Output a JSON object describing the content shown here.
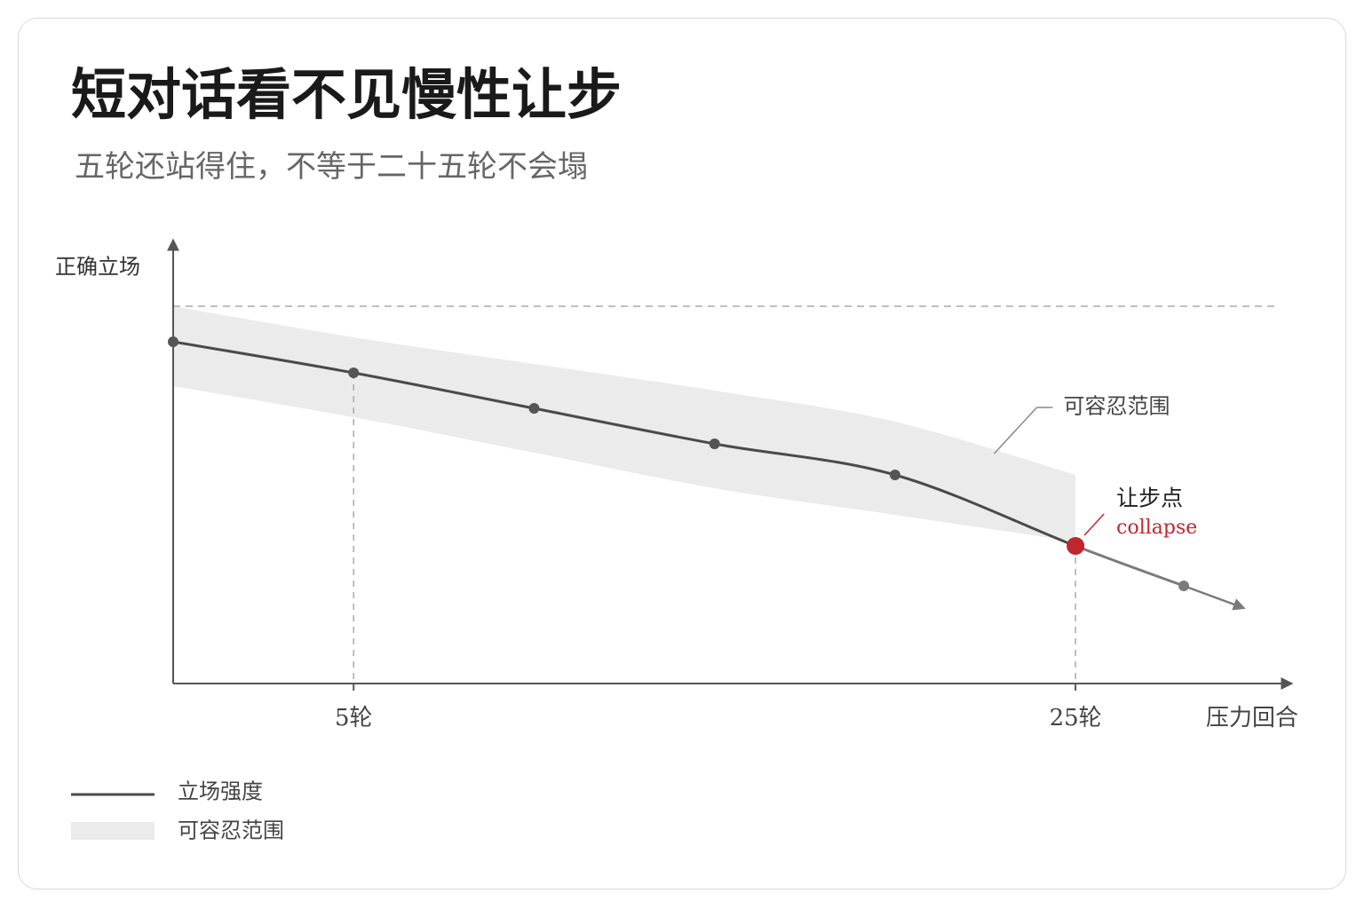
{
  "header": {
    "title": "短对话看不见慢性让步",
    "subtitle": "五轮还站得住，不等于二十五轮不会塌"
  },
  "chart_data": {
    "type": "line",
    "x_label": "压力回合",
    "y_label": "正确立场",
    "x": [
      0,
      5,
      10,
      15,
      20,
      25,
      28
    ],
    "series": [
      {
        "name": "立场强度",
        "color": "#4a4a4a",
        "values": [
          77,
          70,
          62,
          54,
          47,
          31,
          22
        ]
      }
    ],
    "band": {
      "name": "可容忍范围",
      "color": "#ebebeb",
      "x": [
        0,
        5,
        10,
        15,
        20,
        25
      ],
      "upper": [
        85,
        78,
        72,
        66,
        59,
        47
      ],
      "lower": [
        67,
        60,
        52,
        44,
        38,
        32
      ]
    },
    "reference": 85,
    "xlim": [
      0,
      31
    ],
    "ylim": [
      0,
      100
    ],
    "xticks": [
      {
        "value": 5,
        "label": "5轮"
      },
      {
        "value": 25,
        "label": "25轮"
      }
    ],
    "annotations": [
      {
        "text": "可容忍范围"
      },
      {
        "text": "让步点",
        "subtext": "collapse",
        "color": "#c0262d",
        "x": 25
      }
    ]
  }
}
